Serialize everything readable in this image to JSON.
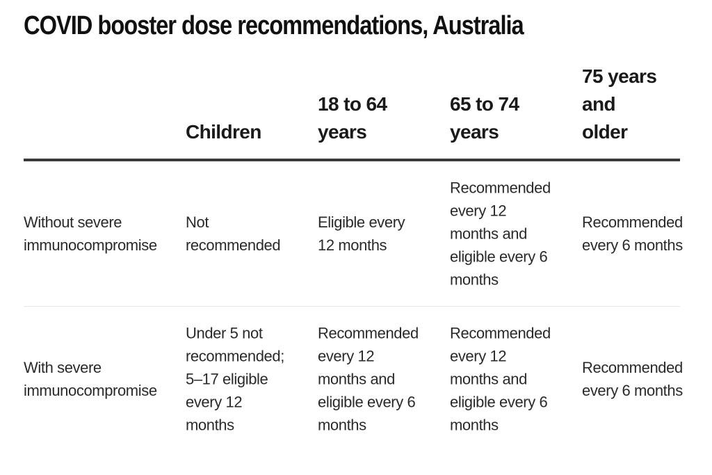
{
  "title": "COVID booster dose recommendations, Australia",
  "table": {
    "columns": [
      "",
      [
        "Children"
      ],
      [
        "18 to 64",
        "years"
      ],
      [
        "65 to 74",
        "years"
      ],
      [
        "75 years and",
        "older"
      ]
    ],
    "rows": [
      {
        "label": [
          "Without severe",
          "immunocompromise"
        ],
        "cells": [
          [
            "Not",
            "recommended"
          ],
          [
            "Eligible every",
            "12 months"
          ],
          [
            "Recommended",
            "every 12",
            "months and",
            "eligible every 6",
            "months"
          ],
          [
            "Recommended",
            "every 6 months"
          ]
        ]
      },
      {
        "label": [
          "With severe",
          "immunocompromise"
        ],
        "cells": [
          [
            "Under 5 not",
            "recommended;",
            "5–17 eligible",
            "every 12",
            "months"
          ],
          [
            "Recommended",
            "every 12",
            "months and",
            "eligible every 6",
            "months"
          ],
          [
            "Recommended",
            "every 12",
            "months and",
            "eligible every 6",
            "months"
          ],
          [
            "Recommended",
            "every 6 months"
          ]
        ]
      }
    ]
  }
}
